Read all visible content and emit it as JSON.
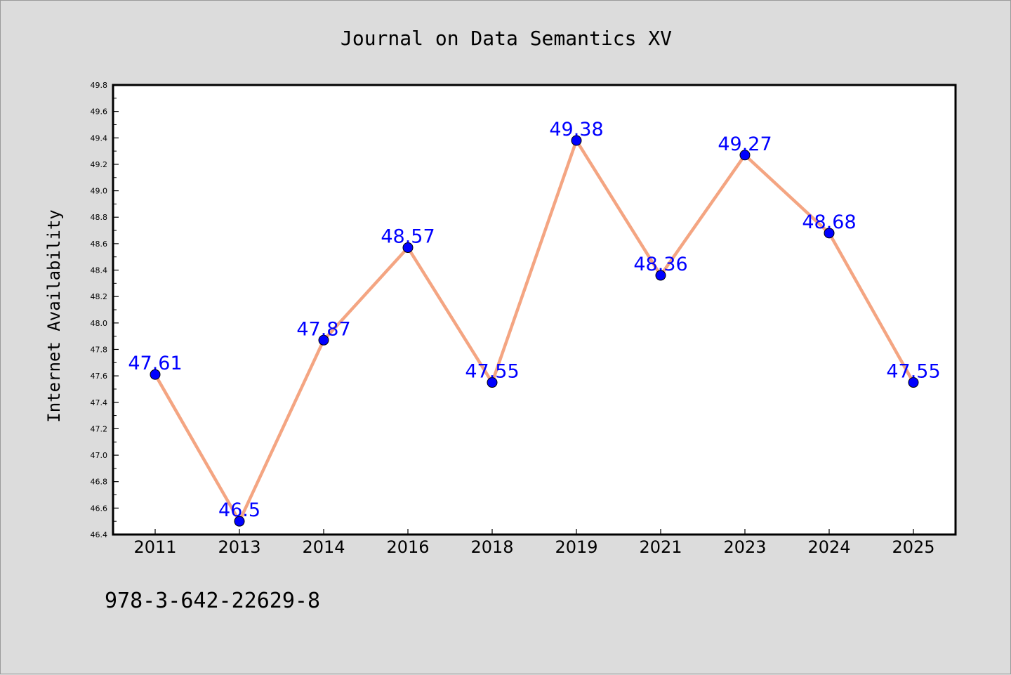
{
  "chart_data": {
    "type": "line",
    "title": "Journal on Data Semantics XV",
    "xlabel": "",
    "ylabel": "Internet Availability",
    "categories": [
      "2011",
      "2013",
      "2014",
      "2016",
      "2018",
      "2019",
      "2021",
      "2023",
      "2024",
      "2025"
    ],
    "series": [
      {
        "values": [
          47.61,
          46.5,
          47.87,
          48.57,
          47.55,
          49.38,
          48.36,
          49.27,
          48.68,
          47.55
        ],
        "data_labels": [
          "47.61",
          "46.5",
          "47.87",
          "48.57",
          "47.55",
          "49.38",
          "48.36",
          "49.27",
          "48.68",
          "47.55"
        ]
      }
    ],
    "ylim": [
      46.4,
      49.8
    ],
    "yticks": [
      "46.4",
      "46.6",
      "46.8",
      "47.0",
      "47.2",
      "47.4",
      "47.6",
      "47.8",
      "48.0",
      "48.2",
      "48.4",
      "48.6",
      "48.8",
      "49.0",
      "49.2",
      "49.4",
      "49.6",
      "49.8"
    ],
    "grid": false,
    "colors": {
      "line": "#f4a582",
      "marker": "#0000ff",
      "label": "#0000ff",
      "background": "#dcdcdc",
      "plot_background": "#ffffff"
    }
  },
  "footer": {
    "isbn": "978-3-642-22629-8"
  }
}
